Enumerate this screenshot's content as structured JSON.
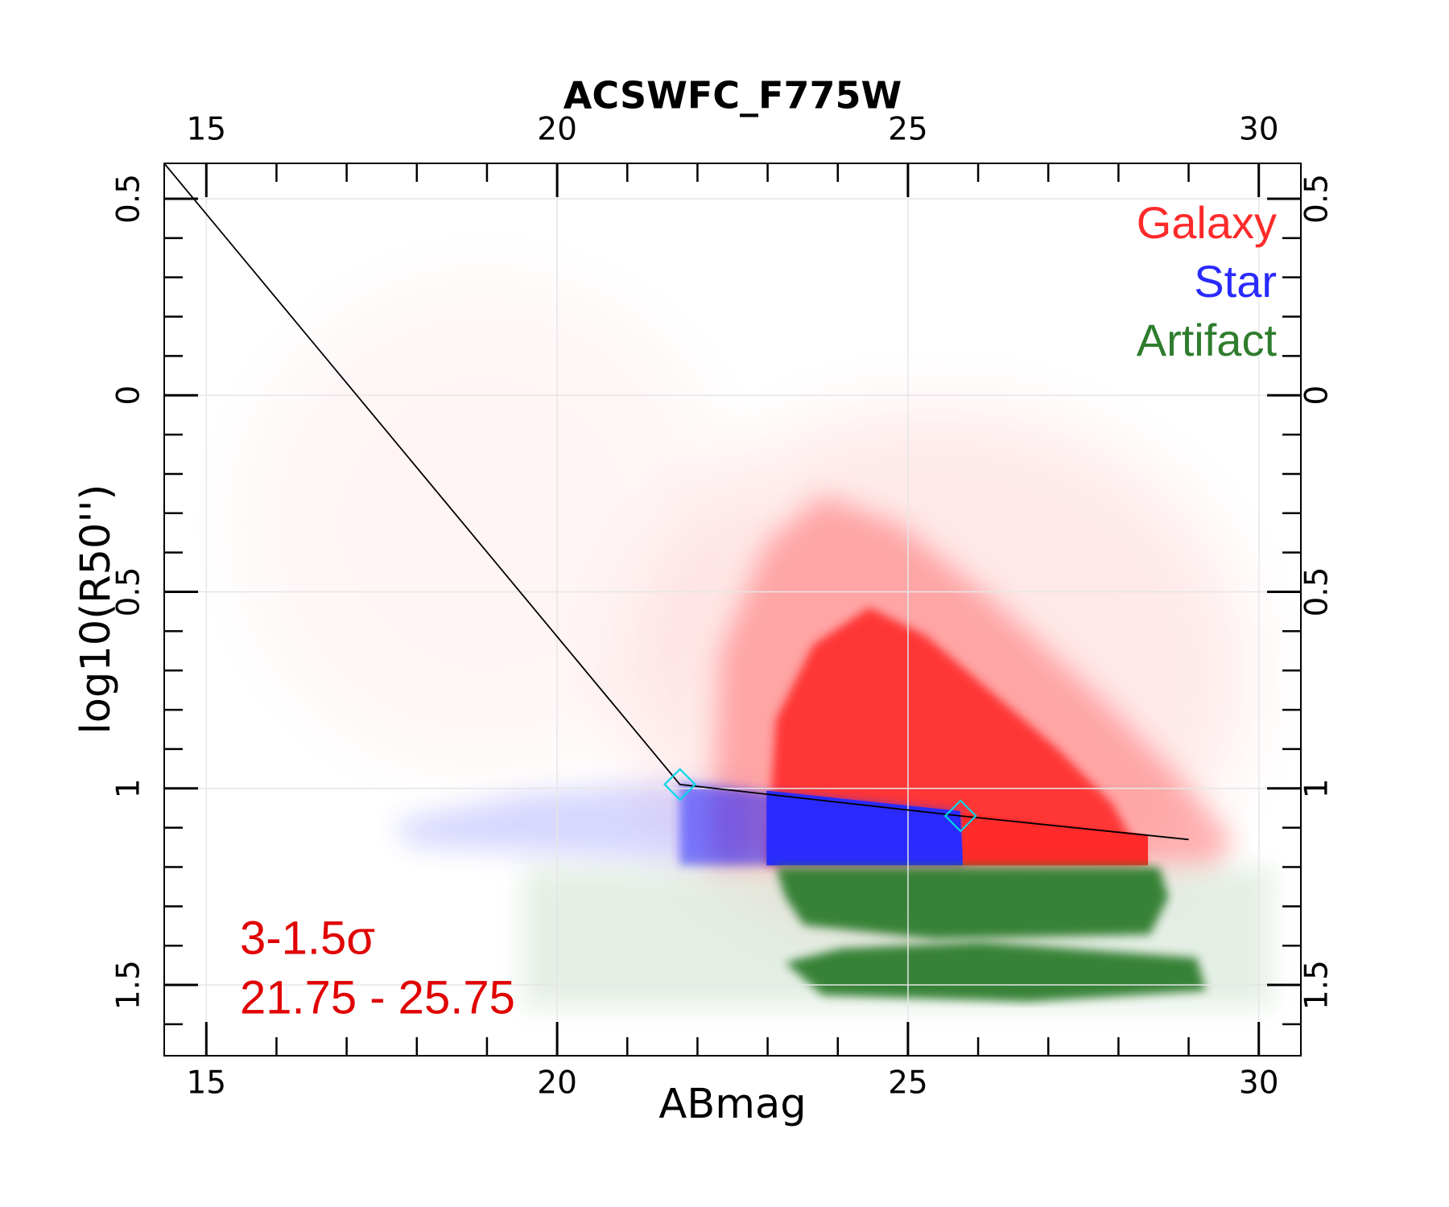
{
  "chart_data": {
    "type": "scatter",
    "title": "ACSWFC_F775W",
    "x_label": "ABmag",
    "y_label": "log10(R50'')",
    "xlim": [
      14.4,
      30.6
    ],
    "ylim": [
      -1.68,
      0.59
    ],
    "xticks": [
      15,
      20,
      25,
      30
    ],
    "yticks": [
      0.5,
      0,
      {
        "value": -0.5,
        "label": "0.5"
      },
      {
        "value": -1,
        "label": "1"
      },
      {
        "value": -1.5,
        "label": "1.5"
      }
    ],
    "xminorticks": [
      16,
      17,
      18,
      19,
      21,
      22,
      23,
      24,
      26,
      27,
      28,
      29
    ],
    "yminorticks": [
      0.4,
      0.3,
      0.2,
      0.1,
      -0.1,
      -0.2,
      -0.3,
      -0.4,
      -0.6,
      -0.7,
      -0.8,
      -0.9,
      -1.1,
      -1.2,
      -1.3,
      -1.4,
      -1.6
    ],
    "grid": true,
    "series": [
      {
        "name": "Galaxy",
        "color": "#ff2a2a"
      },
      {
        "name": "Star",
        "color": "#2a2aff"
      },
      {
        "name": "Artifact",
        "color": "#2e7d2e"
      }
    ],
    "boundary": {
      "x": [
        14.4,
        21.75,
        25.75,
        29.0
      ],
      "y": [
        0.59,
        -0.99,
        -1.07,
        -1.13
      ],
      "color": "#000000"
    },
    "markers": {
      "x": [
        21.75,
        25.75
      ],
      "y": [
        -0.99,
        -1.07
      ],
      "color": "#00d8e8"
    },
    "annotations": [
      "3-1.5σ",
      "21.75 - 25.75"
    ],
    "annotation_color": "#e00000",
    "legend": "upper right"
  }
}
